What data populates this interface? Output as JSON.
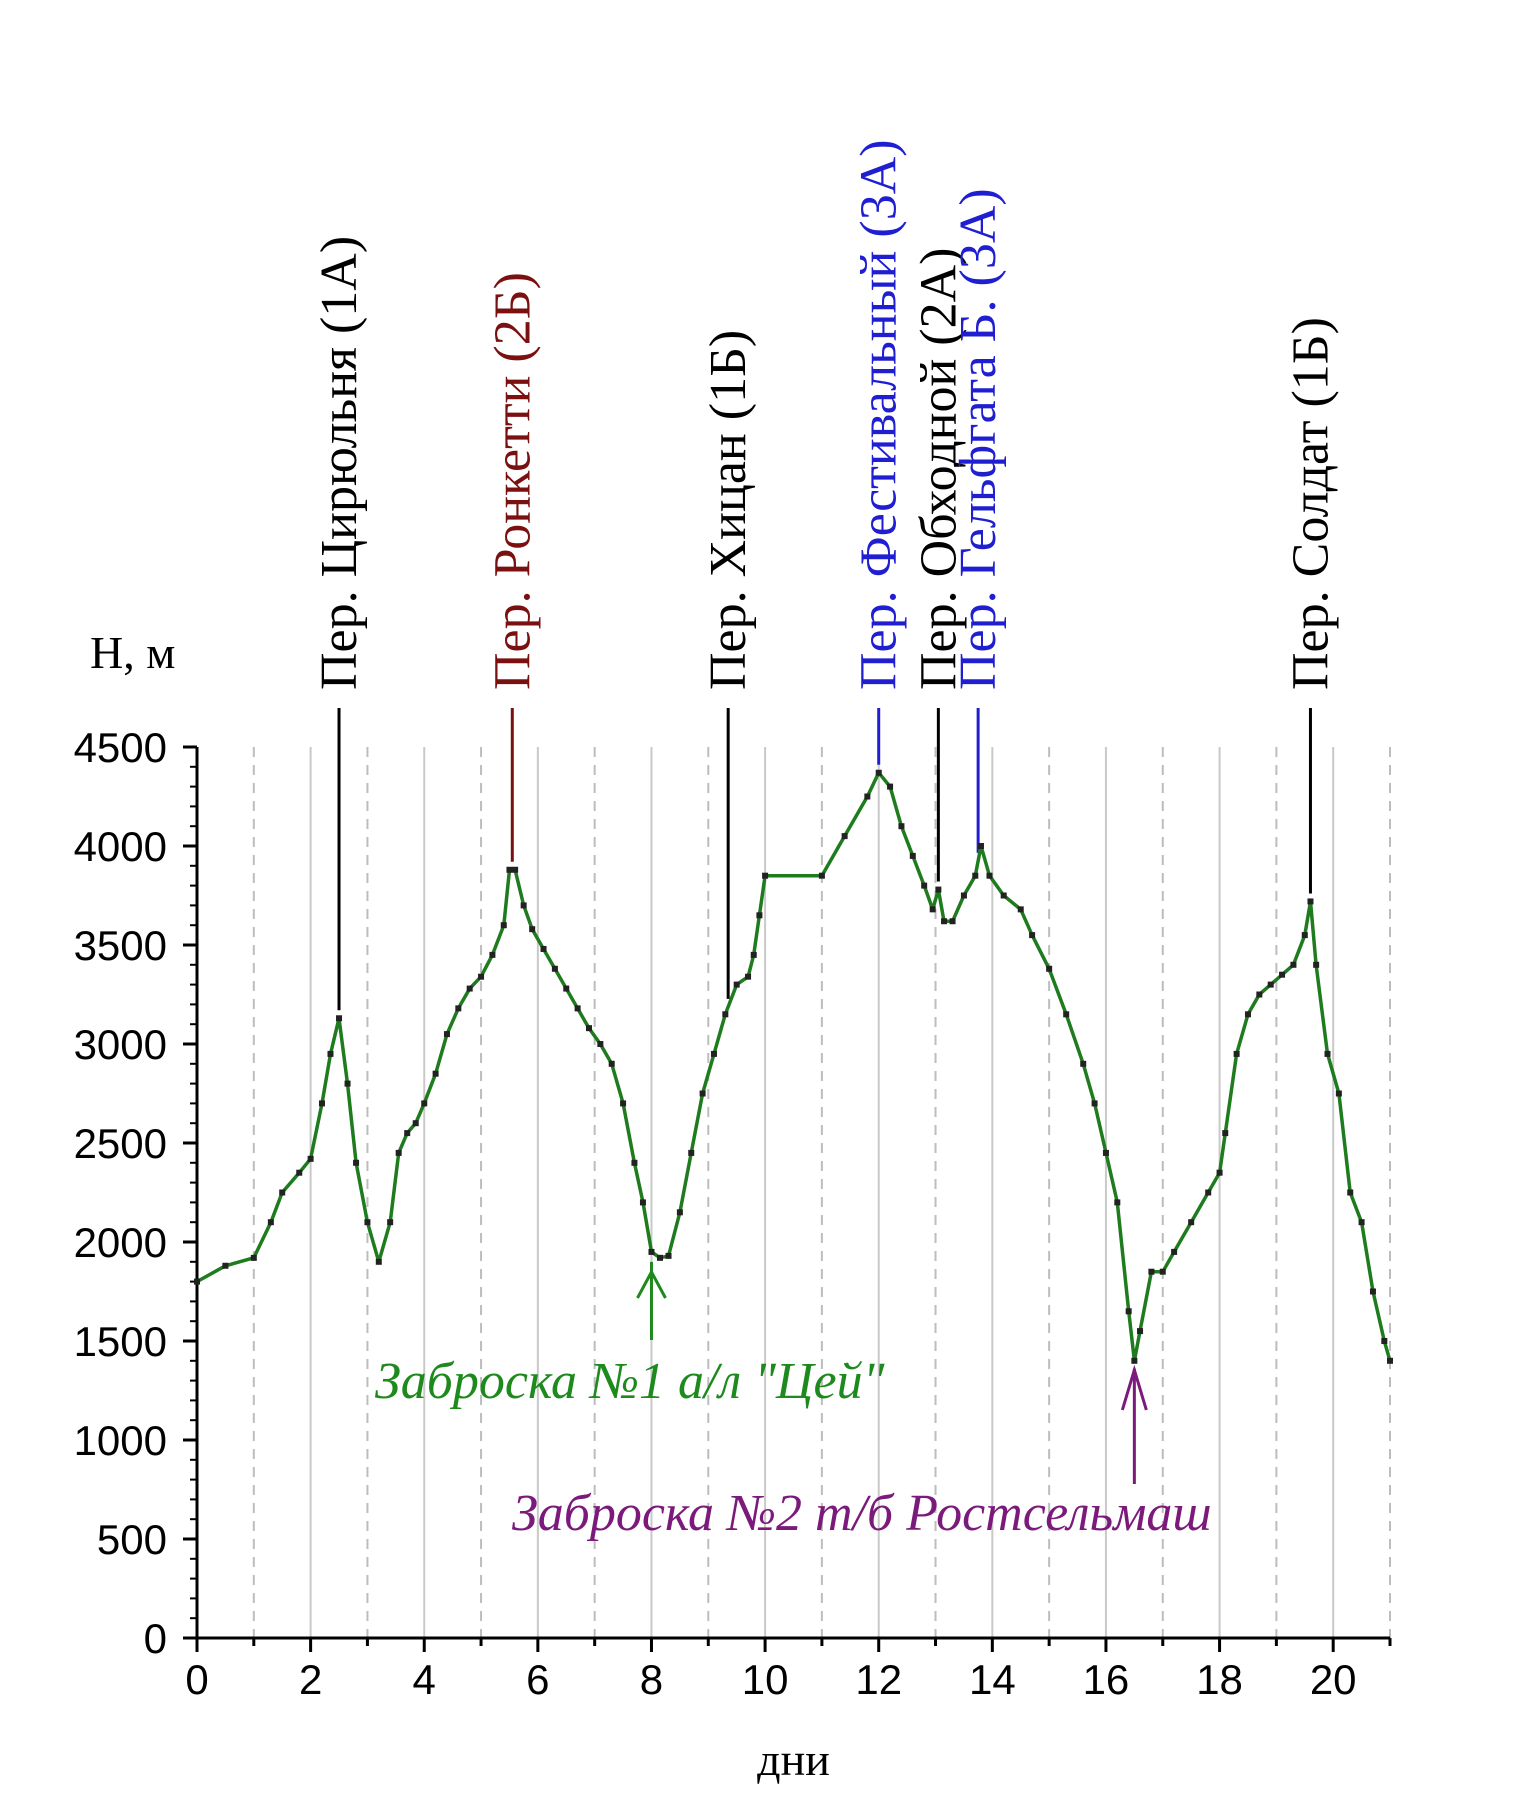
{
  "chart_data": {
    "type": "line",
    "xlabel": "дни",
    "ylabel": "H, м",
    "xlim": [
      0,
      21
    ],
    "ylim": [
      0,
      4500
    ],
    "xticks": [
      0,
      2,
      4,
      6,
      8,
      10,
      12,
      14,
      16,
      18,
      20
    ],
    "yticks": [
      0,
      500,
      1000,
      1500,
      2000,
      2500,
      3000,
      3500,
      4000,
      4500
    ],
    "grid": {
      "vertical_solid_every": 1,
      "vertical_dashed_between": true,
      "horizontal": false
    },
    "line_color": "#1e7b1e",
    "series": [
      {
        "x": [
          0,
          0.5,
          1,
          1.3,
          1.5,
          1.8,
          2,
          2.2,
          2.35,
          2.5,
          2.65,
          2.8,
          3,
          3.2,
          3.4,
          3.55,
          3.7,
          3.85,
          4,
          4.2,
          4.4,
          4.6,
          4.8,
          5,
          5.2,
          5.4,
          5.5,
          5.6,
          5.75,
          5.9,
          6.1,
          6.3,
          6.5,
          6.7,
          6.9,
          7.1,
          7.3,
          7.5,
          7.7,
          7.85,
          8,
          8.15,
          8.3,
          8.5,
          8.7,
          8.9,
          9.1,
          9.3,
          9.5,
          9.7,
          9.8,
          9.9,
          10,
          11,
          11.4,
          11.8,
          12,
          12.2,
          12.4,
          12.6,
          12.8,
          12.95,
          13.05,
          13.15,
          13.3,
          13.5,
          13.7,
          13.8,
          13.95,
          14.2,
          14.5,
          14.7,
          15,
          15.3,
          15.6,
          15.8,
          16,
          16.2,
          16.4,
          16.5,
          16.6,
          16.8,
          17,
          17.2,
          17.5,
          17.8,
          18,
          18.1,
          18.3,
          18.5,
          18.7,
          18.9,
          19.1,
          19.3,
          19.5,
          19.6,
          19.7,
          19.9,
          20.1,
          20.3,
          20.5,
          20.7,
          20.9,
          21
        ],
        "y": [
          1800,
          1880,
          1920,
          2100,
          2250,
          2350,
          2420,
          2700,
          2950,
          3130,
          2800,
          2400,
          2100,
          1900,
          2100,
          2450,
          2550,
          2600,
          2700,
          2850,
          3050,
          3180,
          3280,
          3340,
          3450,
          3600,
          3880,
          3880,
          3700,
          3580,
          3480,
          3380,
          3280,
          3180,
          3080,
          3000,
          2900,
          2700,
          2400,
          2200,
          1950,
          1920,
          1930,
          2150,
          2450,
          2750,
          2950,
          3150,
          3300,
          3340,
          3450,
          3650,
          3850,
          3850,
          4050,
          4250,
          4370,
          4300,
          4100,
          3950,
          3800,
          3680,
          3780,
          3620,
          3620,
          3750,
          3850,
          4000,
          3850,
          3750,
          3680,
          3550,
          3380,
          3150,
          2900,
          2700,
          2450,
          2200,
          1650,
          1400,
          1550,
          1850,
          1850,
          1950,
          2100,
          2250,
          2350,
          2550,
          2950,
          3150,
          3250,
          3300,
          3350,
          3400,
          3550,
          3720,
          3400,
          2950,
          2750,
          2250,
          2100,
          1750,
          1500,
          1400
        ]
      }
    ],
    "passes": [
      {
        "label": "Пер. Цирюльня (1А)",
        "x": 2.5,
        "color": "#000000"
      },
      {
        "label": "Пер. Ронкетти (2Б)",
        "x": 5.55,
        "color": "#7b1010"
      },
      {
        "label": "Пер. Хицан (1Б)",
        "x": 9.35,
        "color": "#000000"
      },
      {
        "label": "Пер. Фестивальный (3А)",
        "x": 12.0,
        "color": "#1f1fd1"
      },
      {
        "label": "Пер. Обходной (2А)",
        "x": 13.05,
        "color": "#000000"
      },
      {
        "label": "Пер. Гельфгата Б. (3А)",
        "x": 13.75,
        "color": "#1f1fd1"
      },
      {
        "label": "Пер. Солдат (1Б)",
        "x": 19.6,
        "color": "#000000"
      }
    ],
    "annotations": [
      {
        "text": "Заброска №1 а/л \"Цей\"",
        "x": 8,
        "color": "#1e8a1e"
      },
      {
        "text": "Заброска №2 т/б Ростсельмаш",
        "x": 16.5,
        "color": "#7b1a7b"
      }
    ]
  }
}
